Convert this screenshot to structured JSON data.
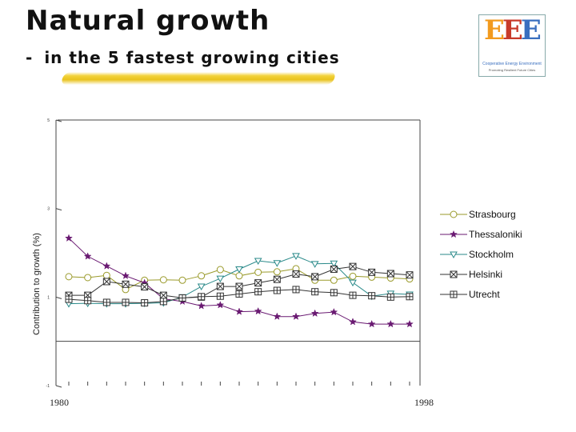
{
  "header": {
    "title": "Natural growth",
    "dash": "-",
    "subtitle": "in the 5 fastest growing cities",
    "highlight_color": "#eacb2a"
  },
  "logo": {
    "letters": [
      "E",
      "E",
      "E"
    ],
    "caption": "Cooperative Energy Environment",
    "tagline": "Promoting Resilient Future Cities"
  },
  "chart_data": {
    "type": "line",
    "title": "",
    "xlabel": "",
    "ylabel": "Contribution to growth (%)",
    "x": [
      1980,
      1981,
      1982,
      1983,
      1984,
      1985,
      1986,
      1987,
      1988,
      1989,
      1990,
      1991,
      1992,
      1993,
      1994,
      1995,
      1996,
      1997,
      1998
    ],
    "x_tick_labels": [
      "1980",
      "1998"
    ],
    "y_tick_labels": [
      "5",
      "3",
      "1",
      "-1"
    ],
    "ylim": [
      -1,
      5
    ],
    "legend_position": "right",
    "series": [
      {
        "name": "Strasbourg",
        "marker": "circle",
        "color": "#9a9a2a",
        "values": [
          1.46,
          1.44,
          1.49,
          1.17,
          1.38,
          1.39,
          1.38,
          1.48,
          1.62,
          1.48,
          1.56,
          1.57,
          1.64,
          1.38,
          1.38,
          1.47,
          1.45,
          1.43,
          1.41
        ]
      },
      {
        "name": "Thessaloniki",
        "marker": "star",
        "color": "#6a1a72",
        "values": [
          2.33,
          1.92,
          1.7,
          1.48,
          1.32,
          0.96,
          0.9,
          0.8,
          0.82,
          0.67,
          0.68,
          0.56,
          0.56,
          0.63,
          0.66,
          0.44,
          0.39,
          0.39,
          0.39
        ]
      },
      {
        "name": "Stockholm",
        "marker": "triangle-down",
        "color": "#2a8a8a",
        "values": [
          0.85,
          0.86,
          0.85,
          0.85,
          0.86,
          0.87,
          1.0,
          1.24,
          1.42,
          1.63,
          1.82,
          1.77,
          1.93,
          1.75,
          1.76,
          1.33,
          1.02,
          1.08,
          1.06
        ]
      },
      {
        "name": "Helsinki",
        "marker": "box-x",
        "color": "#333333",
        "values": [
          1.04,
          1.04,
          1.35,
          1.29,
          1.23,
          1.04,
          0.98,
          1.0,
          1.24,
          1.24,
          1.32,
          1.4,
          1.52,
          1.46,
          1.63,
          1.69,
          1.56,
          1.53,
          1.5
        ]
      },
      {
        "name": "Utrecht",
        "marker": "box-plus",
        "color": "#333333",
        "values": [
          0.95,
          0.92,
          0.88,
          0.88,
          0.87,
          0.9,
          0.98,
          1.01,
          1.02,
          1.07,
          1.12,
          1.15,
          1.17,
          1.12,
          1.1,
          1.04,
          1.03,
          1.0,
          1.01
        ]
      }
    ]
  }
}
